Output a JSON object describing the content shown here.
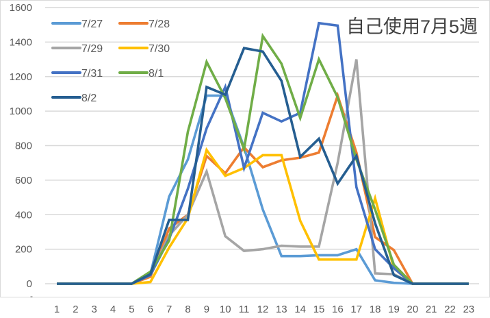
{
  "chart_data": {
    "type": "line",
    "title": "自己使用7月5週",
    "xlabel": "",
    "ylabel": "",
    "categories": [
      1,
      2,
      3,
      4,
      5,
      6,
      7,
      8,
      9,
      10,
      11,
      12,
      13,
      14,
      15,
      16,
      17,
      18,
      19,
      20,
      21,
      22,
      23
    ],
    "ylim": [
      0,
      1600
    ],
    "yticks": [
      0,
      200,
      400,
      600,
      800,
      1000,
      1200,
      1400,
      1600
    ],
    "grid": true,
    "legend_position": "top-left inside",
    "series": [
      {
        "name": "7/27",
        "color": "#5B9BD5",
        "values": [
          0,
          0,
          0,
          0,
          0,
          55,
          505,
          720,
          1090,
          1090,
          790,
          430,
          160,
          160,
          165,
          165,
          200,
          20,
          5,
          0,
          0,
          0,
          0
        ]
      },
      {
        "name": "7/28",
        "color": "#ED7D31",
        "values": [
          0,
          0,
          0,
          0,
          0,
          40,
          320,
          400,
          740,
          640,
          790,
          675,
          715,
          730,
          760,
          1090,
          760,
          270,
          195,
          0,
          0,
          0,
          0
        ]
      },
      {
        "name": "7/29",
        "color": "#A5A5A5",
        "values": [
          0,
          0,
          0,
          0,
          0,
          50,
          280,
          400,
          650,
          275,
          190,
          200,
          220,
          215,
          215,
          700,
          1300,
          60,
          55,
          0,
          0,
          0,
          0
        ]
      },
      {
        "name": "7/30",
        "color": "#FFC000",
        "values": [
          0,
          0,
          0,
          0,
          0,
          10,
          210,
          380,
          775,
          625,
          670,
          745,
          745,
          365,
          140,
          140,
          140,
          495,
          90,
          0,
          0,
          0,
          0
        ]
      },
      {
        "name": "7/31",
        "color": "#4472C4",
        "values": [
          0,
          0,
          0,
          0,
          0,
          50,
          260,
          550,
          900,
          1140,
          670,
          990,
          940,
          990,
          1510,
          1495,
          560,
          200,
          90,
          0,
          0,
          0,
          0
        ]
      },
      {
        "name": "8/1",
        "color": "#70AD47",
        "values": [
          0,
          0,
          0,
          0,
          0,
          70,
          250,
          880,
          1285,
          1075,
          780,
          1435,
          1275,
          960,
          1300,
          1080,
          720,
          430,
          110,
          0,
          0,
          0,
          0
        ]
      },
      {
        "name": "8/2",
        "color": "#255E91",
        "values": [
          0,
          0,
          0,
          0,
          0,
          55,
          370,
          370,
          1140,
          1095,
          1365,
          1345,
          1175,
          735,
          840,
          580,
          740,
          350,
          50,
          0,
          0,
          0,
          0
        ]
      }
    ]
  },
  "ui": {
    "title": "自己使用7月5週",
    "y_tick_labels": [
      "1600",
      "1400",
      "1200",
      "1000",
      "800",
      "600",
      "400",
      "200",
      "0"
    ],
    "x_tick_labels": [
      "1",
      "2",
      "3",
      "4",
      "5",
      "6",
      "7",
      "8",
      "9",
      "10",
      "11",
      "12",
      "13",
      "14",
      "15",
      "16",
      "17",
      "18",
      "19",
      "20",
      "21",
      "22",
      "23"
    ],
    "stray_dash": "-",
    "legend": [
      {
        "label": "7/27"
      },
      {
        "label": "7/28"
      },
      {
        "label": "7/29"
      },
      {
        "label": "7/30"
      },
      {
        "label": "7/31"
      },
      {
        "label": "8/1"
      },
      {
        "label": "8/2"
      }
    ]
  }
}
